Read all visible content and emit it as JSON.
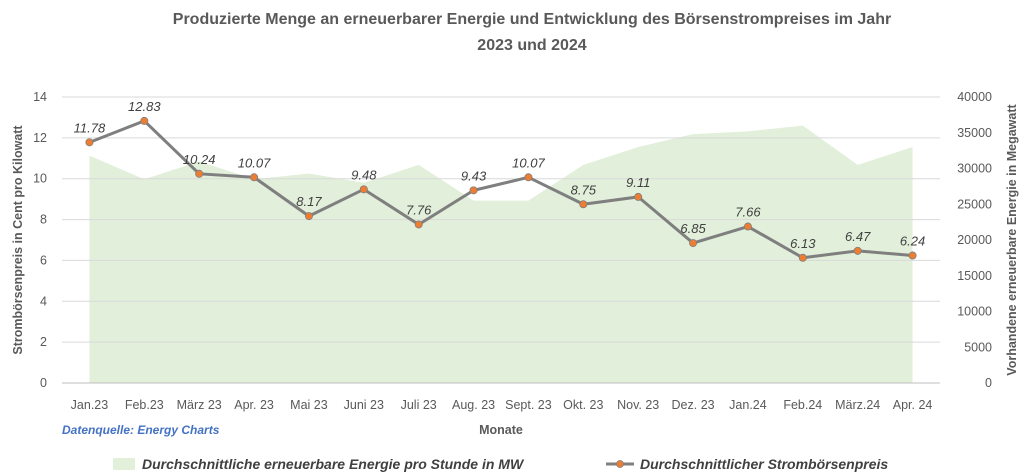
{
  "chart_data": {
    "type": "area+line",
    "title_line1": "Produzierte Menge an erneuerbarer Energie und Entwicklung des Börsenstrompreises im Jahr",
    "title_line2": "2023  und 2024",
    "xlabel": "Monate",
    "ylabel_left": "Strombörsenpreis in Cent pro Kilowatt",
    "ylabel_right": "Vorhandene erneuerbare Energie in Megawatt",
    "source": "Datenquelle: Energy Charts",
    "categories": [
      "Jan.23",
      "Feb.23",
      "März 23",
      "Apr. 23",
      "Mai 23",
      "Juni 23",
      "Juli 23",
      "Aug. 23",
      "Sept. 23",
      "Okt. 23",
      "Nov. 23",
      "Dez. 23",
      "Jan.24",
      "Feb.24",
      "März.24",
      "Apr. 24"
    ],
    "left_axis": {
      "min": 0,
      "max": 14,
      "ticks": [
        "0",
        "2",
        "4",
        "6",
        "8",
        "10",
        "12",
        "14"
      ]
    },
    "right_axis": {
      "min": 0,
      "max": 40000,
      "ticks": [
        "0",
        "5000",
        "10000",
        "15000",
        "20000",
        "25000",
        "30000",
        "35000",
        "40000"
      ]
    },
    "series": [
      {
        "name": "Durchschnittliche erneuerbare Energie pro Stunde in MW",
        "type": "area",
        "axis": "right",
        "color": "#E2EFDA",
        "values": [
          31800,
          28500,
          31000,
          28500,
          29300,
          28000,
          30500,
          25500,
          25500,
          30500,
          33000,
          34800,
          35200,
          36000,
          30500,
          33000
        ]
      },
      {
        "name": "Durchschnittlicher Strombörsenpreis",
        "type": "line",
        "axis": "left",
        "color": "#7F7F7F",
        "marker_color": "#ED7D31",
        "values": [
          11.78,
          12.83,
          10.24,
          10.07,
          8.17,
          9.48,
          7.76,
          9.43,
          10.07,
          8.75,
          9.11,
          6.85,
          7.66,
          6.13,
          6.47,
          6.24
        ],
        "labels": [
          "11.78",
          "12.83",
          "10.24",
          "10.07",
          "8.17",
          "9.48",
          "7.76",
          "9.43",
          "10.07",
          "8.75",
          "9.11",
          "6.85",
          "7.66",
          "6.13",
          "6.47",
          "6.24"
        ]
      }
    ],
    "legend": {
      "position": "bottom"
    }
  }
}
